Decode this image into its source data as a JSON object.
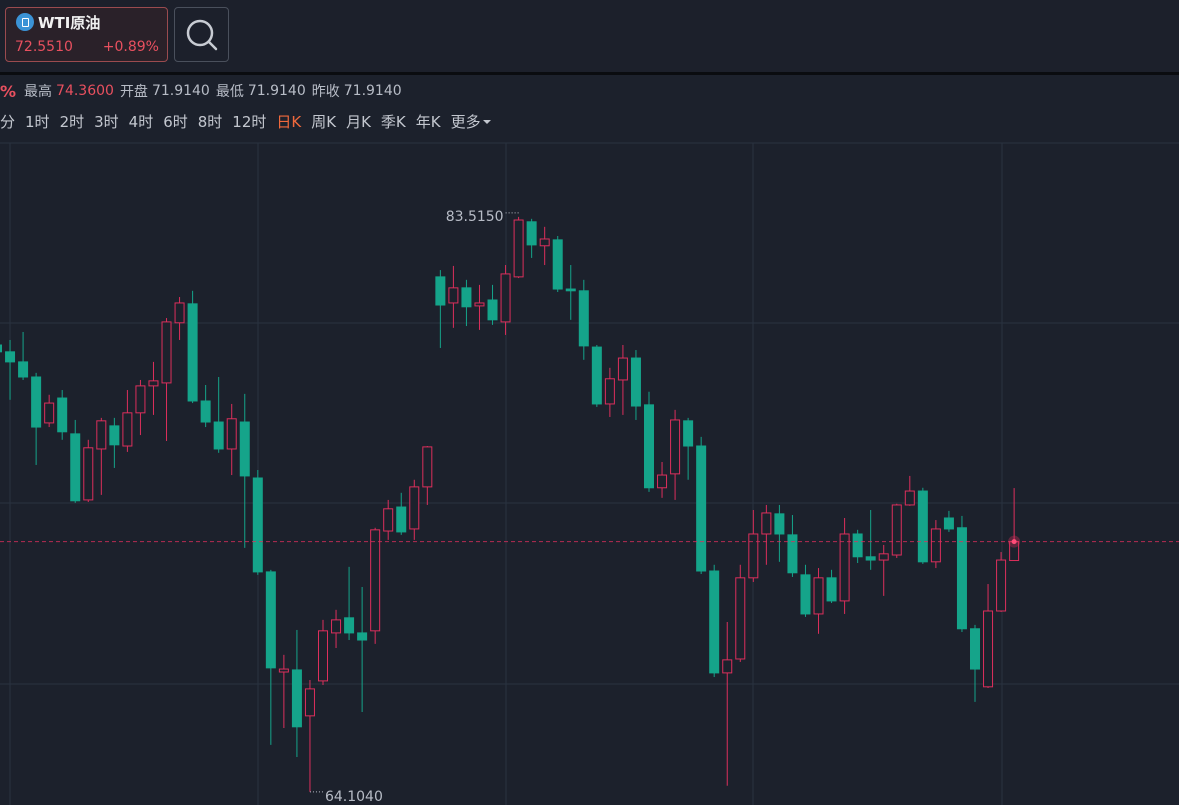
{
  "header": {
    "symbol": "WTI原油",
    "price": "72.5510",
    "change": "+0.89%"
  },
  "info": {
    "change_tail": "%",
    "items": [
      {
        "label": "最高",
        "value": "74.3600"
      },
      {
        "label": "开盘",
        "value": "71.9140"
      },
      {
        "label": "最低",
        "value": "71.9140"
      },
      {
        "label": "昨收",
        "value": "71.9140"
      }
    ]
  },
  "periods": {
    "items": [
      "分",
      "1时",
      "2时",
      "3时",
      "4时",
      "6时",
      "8时",
      "12时",
      "日K",
      "周K",
      "月K",
      "季K",
      "年K",
      "更多"
    ],
    "active": 8
  },
  "chart_data": {
    "type": "candlestick",
    "open": [
      79.19,
      78.96,
      78.62,
      78.11,
      76.56,
      77.4,
      76.19,
      73.96,
      75.68,
      76.46,
      75.78,
      76.9,
      77.81,
      77.91,
      79.94,
      80.58,
      77.3,
      76.59,
      75.68,
      76.59,
      74.7,
      71.53,
      68.15,
      68.22,
      66.67,
      67.85,
      69.47,
      69.98,
      69.47,
      69.54,
      72.91,
      73.72,
      72.98,
      74.4,
      81.49,
      80.61,
      81.12,
      80.51,
      80.71,
      79.97,
      81.49,
      83.35,
      82.54,
      82.74,
      81.08,
      81.02,
      79.12,
      77.2,
      78.01,
      78.75,
      77.17,
      74.37,
      74.84,
      76.63,
      75.78,
      71.56,
      68.12,
      68.59,
      71.33,
      72.81,
      73.49,
      72.78,
      71.43,
      70.11,
      71.33,
      70.55,
      72.81,
      72.04,
      71.93,
      72.1,
      73.79,
      74.26,
      71.87,
      73.35,
      73.02,
      69.61,
      67.65,
      70.21,
      71.914
    ],
    "high": [
      79.7,
      79.36,
      79.63,
      78.25,
      77.51,
      77.67,
      76.66,
      75.99,
      76.73,
      76.73,
      77.67,
      78.01,
      78.62,
      80.1,
      80.81,
      81.02,
      77.84,
      78.11,
      77.2,
      77.54,
      74.97,
      71.6,
      68.73,
      69.57,
      67.88,
      69.91,
      70.25,
      71.7,
      71.02,
      73.02,
      73.96,
      74.2,
      74.64,
      75.78,
      81.72,
      81.86,
      81.39,
      81.22,
      81.22,
      81.89,
      83.515,
      83.45,
      83.18,
      82.87,
      81.89,
      81.39,
      79.19,
      78.42,
      79.19,
      79.02,
      77.61,
      75.24,
      77.0,
      76.73,
      76.09,
      71.77,
      69.84,
      71.77,
      73.62,
      73.79,
      73.79,
      73.45,
      71.77,
      71.66,
      71.6,
      73.35,
      72.95,
      73.62,
      72.44,
      73.83,
      74.77,
      74.37,
      73.28,
      73.59,
      73.42,
      69.74,
      71.12,
      72.2,
      74.36
    ],
    "low": [
      78.69,
      77.34,
      78.01,
      75.14,
      76.42,
      75.99,
      73.86,
      73.89,
      74.13,
      75.04,
      75.58,
      76.15,
      76.83,
      75.95,
      79.36,
      77.23,
      76.42,
      75.55,
      74.8,
      72.34,
      71.43,
      65.69,
      66.26,
      65.28,
      64.104,
      67.71,
      68.96,
      69.23,
      66.8,
      69.1,
      72.61,
      72.78,
      72.61,
      73.79,
      79.09,
      79.77,
      79.83,
      79.7,
      79.87,
      79.53,
      81.45,
      82.13,
      81.89,
      80.98,
      80.04,
      78.69,
      77.1,
      76.76,
      76.83,
      76.66,
      74.23,
      74.03,
      73.96,
      74.64,
      71.46,
      67.98,
      64.31,
      68.49,
      71.19,
      71.77,
      71.87,
      71.36,
      70.01,
      69.44,
      70.48,
      70.11,
      71.83,
      71.6,
      70.72,
      72.0,
      73.76,
      71.8,
      71.66,
      72.88,
      69.5,
      67.14,
      67.61,
      70.18,
      71.914
    ],
    "close": [
      78.96,
      78.62,
      78.11,
      76.42,
      77.23,
      76.26,
      73.93,
      75.72,
      76.63,
      75.82,
      76.9,
      77.81,
      77.98,
      79.97,
      80.61,
      77.3,
      76.59,
      75.68,
      76.7,
      74.77,
      71.53,
      68.29,
      68.25,
      66.3,
      67.58,
      69.54,
      69.91,
      69.47,
      69.23,
      72.95,
      73.66,
      72.88,
      74.4,
      75.75,
      80.54,
      81.12,
      80.48,
      80.61,
      80.04,
      81.59,
      83.41,
      82.57,
      82.77,
      81.08,
      81.02,
      79.16,
      77.2,
      78.05,
      78.75,
      77.13,
      74.37,
      74.8,
      76.66,
      75.78,
      71.56,
      68.12,
      68.56,
      71.33,
      72.81,
      73.52,
      72.81,
      71.5,
      70.11,
      71.33,
      70.55,
      72.81,
      72.04,
      71.93,
      72.14,
      73.79,
      74.26,
      71.87,
      72.98,
      72.98,
      69.61,
      68.25,
      70.21,
      71.93,
      72.551
    ],
    "ylim": [
      63.66,
      86.01
    ],
    "up_color": "#dc2f5c",
    "down_color": "#15a48a",
    "high_label": "83.5150",
    "low_label": "64.1040"
  }
}
